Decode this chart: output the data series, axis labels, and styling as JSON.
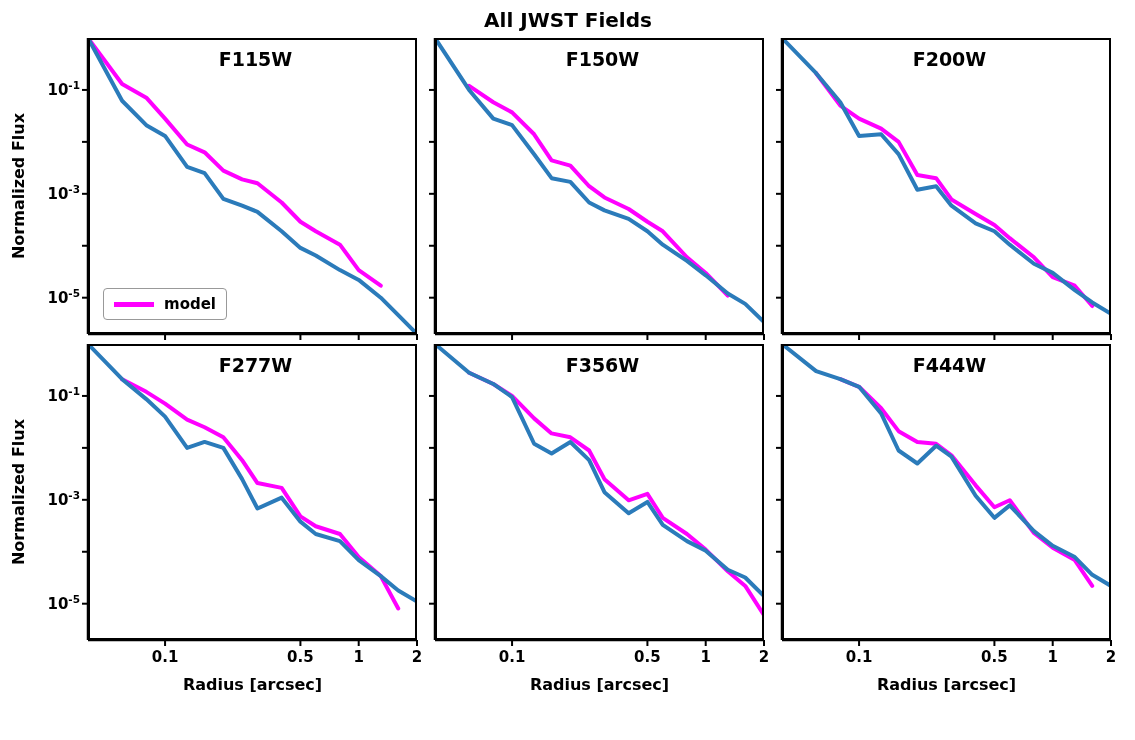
{
  "chart_data": [
    {
      "type": "line",
      "title": "F115W",
      "annotations": [
        "All JWST Fields"
      ],
      "ylabel": "Normalized Flux",
      "log": "xy",
      "xlim": [
        0.04,
        2
      ],
      "xticks": [
        {
          "value": 0.1,
          "label": null
        },
        {
          "value": 0.5,
          "label": null
        },
        {
          "value": 1,
          "label": null
        },
        {
          "value": 2,
          "label": null
        }
      ],
      "ylim": [
        2e-06,
        1
      ],
      "yticks": [
        {
          "value": 1e-05,
          "label": "10$^{-5}$"
        },
        {
          "value": 0.0001,
          "label": null
        },
        {
          "value": 0.001,
          "label": "10$^{-3}$"
        },
        {
          "value": 0.01,
          "label": null
        },
        {
          "value": 0.1,
          "label": "10$^{-1}$"
        }
      ],
      "tick_labels": "y",
      "legend": "bottom left",
      "marker": "none",
      "line_style": "solid",
      "grid": false,
      "x": [
        0.04,
        0.06,
        0.08,
        0.1,
        0.13,
        0.16,
        0.2,
        0.25,
        0.3,
        0.4,
        0.5,
        0.6,
        0.8,
        1,
        1.3,
        1.6,
        2
      ],
      "series": [
        {
          "color": "#2b7bba",
          "values": [
            1,
            0.062,
            0.021,
            0.013,
            0.0033,
            0.0025,
            0.0008,
            0.00059,
            0.00045,
            0.00019,
            9.1e-05,
            6.5e-05,
            3.4e-05,
            2.2e-05,
            1e-05,
            4.6e-06,
            2e-06
          ]
        },
        {
          "name": "model",
          "color": "#ff00ff",
          "values": [
            1,
            0.13,
            0.071,
            0.028,
            0.0089,
            0.0063,
            0.0028,
            0.0019,
            0.0016,
            0.00068,
            0.00029,
            0.00019,
            0.000105,
            3.4e-05,
            1.7e-05,
            null,
            null
          ]
        }
      ]
    },
    {
      "type": "line",
      "title": "F150W",
      "log": "xy",
      "xlim": [
        0.04,
        2
      ],
      "xticks": [
        {
          "value": 0.1,
          "label": null
        },
        {
          "value": 0.5,
          "label": null
        },
        {
          "value": 1,
          "label": null
        },
        {
          "value": 2,
          "label": null
        }
      ],
      "ylim": [
        2e-06,
        1
      ],
      "yticks": [
        {
          "value": 1e-05,
          "label": null
        },
        {
          "value": 0.0001,
          "label": null
        },
        {
          "value": 0.001,
          "label": null
        },
        {
          "value": 0.01,
          "label": null
        },
        {
          "value": 0.1,
          "label": null
        }
      ],
      "tick_labels": false,
      "marker": "none",
      "line_style": "solid",
      "grid": false,
      "x": [
        0.04,
        0.06,
        0.08,
        0.1,
        0.13,
        0.16,
        0.2,
        0.25,
        0.3,
        0.4,
        0.5,
        0.6,
        0.8,
        1,
        1.3,
        1.6,
        2
      ],
      "series": [
        {
          "color": "#2b7bba",
          "values": [
            1,
            0.1,
            0.028,
            0.021,
            0.0058,
            0.002,
            0.0017,
            0.00068,
            0.00048,
            0.00033,
            0.00019,
            0.000105,
            5.1e-05,
            2.7e-05,
            1.2e-05,
            7.6e-06,
            3.4e-06
          ]
        },
        {
          "color": "#ff00ff",
          "values": [
            null,
            0.12,
            0.058,
            0.037,
            0.014,
            0.0044,
            0.0035,
            0.0014,
            0.00085,
            0.00051,
            0.00029,
            0.00019,
            6e-05,
            3e-05,
            1.1e-05,
            null,
            null
          ]
        }
      ]
    },
    {
      "type": "line",
      "title": "F200W",
      "log": "xy",
      "xlim": [
        0.04,
        2
      ],
      "xticks": [
        {
          "value": 0.1,
          "label": null
        },
        {
          "value": 0.5,
          "label": null
        },
        {
          "value": 1,
          "label": null
        },
        {
          "value": 2,
          "label": null
        }
      ],
      "ylim": [
        2e-06,
        1
      ],
      "yticks": [
        {
          "value": 1e-05,
          "label": null
        },
        {
          "value": 0.0001,
          "label": null
        },
        {
          "value": 0.001,
          "label": null
        },
        {
          "value": 0.01,
          "label": null
        },
        {
          "value": 0.1,
          "label": null
        }
      ],
      "tick_labels": false,
      "marker": "none",
      "line_style": "solid",
      "grid": false,
      "x": [
        0.04,
        0.06,
        0.08,
        0.1,
        0.13,
        0.16,
        0.2,
        0.25,
        0.3,
        0.4,
        0.5,
        0.6,
        0.8,
        1,
        1.3,
        1.6,
        2
      ],
      "series": [
        {
          "color": "#2b7bba",
          "values": [
            1,
            0.21,
            0.058,
            0.013,
            0.014,
            0.0058,
            0.0012,
            0.0014,
            0.00059,
            0.00027,
            0.00019,
            0.000105,
            4.5e-05,
            3e-05,
            1.4e-05,
            8.1e-06,
            4.9e-06
          ]
        },
        {
          "color": "#ff00ff",
          "values": [
            null,
            0.21,
            0.05,
            0.028,
            0.018,
            0.01,
            0.0023,
            0.002,
            0.00078,
            0.00041,
            0.00025,
            0.00014,
            6e-05,
            2.5e-05,
            1.7e-05,
            6.9e-06,
            null
          ]
        }
      ]
    },
    {
      "type": "line",
      "title": "F277W",
      "xlabel": "Radius [arcsec]",
      "ylabel": "Normalized Flux",
      "log": "xy",
      "xlim": [
        0.04,
        2
      ],
      "xticks": [
        0.1,
        0.5,
        1,
        2
      ],
      "ylim": [
        2e-06,
        1
      ],
      "yticks": [
        {
          "value": 1e-05,
          "label": "10$^{-5}$"
        },
        {
          "value": 0.0001,
          "label": null
        },
        {
          "value": 0.001,
          "label": "10$^{-3}$"
        },
        {
          "value": 0.01,
          "label": null
        },
        {
          "value": 0.1,
          "label": "10$^{-1}$"
        }
      ],
      "marker": "none",
      "line_style": "solid",
      "grid": false,
      "x": [
        0.04,
        0.06,
        0.08,
        0.1,
        0.13,
        0.16,
        0.2,
        0.25,
        0.3,
        0.4,
        0.5,
        0.6,
        0.8,
        1,
        1.3,
        1.6,
        2
      ],
      "series": [
        {
          "color": "#2b7bba",
          "values": [
            1,
            0.21,
            0.087,
            0.04,
            0.01,
            0.013,
            0.01,
            0.0025,
            0.00068,
            0.0011,
            0.00038,
            0.00022,
            0.00016,
            6.9e-05,
            3.4e-05,
            1.8e-05,
            1.1e-05
          ]
        },
        {
          "color": "#ff00ff",
          "values": [
            null,
            0.21,
            0.12,
            0.071,
            0.035,
            0.025,
            0.016,
            0.0058,
            0.0021,
            0.0017,
            0.00048,
            0.00031,
            0.00022,
            7.9e-05,
            3.4e-05,
            8.1e-06,
            null
          ]
        }
      ]
    },
    {
      "type": "line",
      "title": "F356W",
      "xlabel": "Radius [arcsec]",
      "log": "xy",
      "xlim": [
        0.04,
        2
      ],
      "xticks": [
        0.1,
        0.5,
        1,
        2
      ],
      "ylim": [
        2e-06,
        1
      ],
      "yticks": [
        {
          "value": 1e-05,
          "label": null
        },
        {
          "value": 0.0001,
          "label": null
        },
        {
          "value": 0.001,
          "label": null
        },
        {
          "value": 0.01,
          "label": null
        },
        {
          "value": 0.1,
          "label": null
        }
      ],
      "tick_labels": "x",
      "marker": "none",
      "line_style": "solid",
      "grid": false,
      "x": [
        0.04,
        0.06,
        0.08,
        0.1,
        0.13,
        0.16,
        0.2,
        0.25,
        0.3,
        0.4,
        0.5,
        0.6,
        0.8,
        1,
        1.3,
        1.6,
        2
      ],
      "series": [
        {
          "color": "#2b7bba",
          "values": [
            1,
            0.28,
            0.17,
            0.095,
            0.012,
            0.0078,
            0.013,
            0.0058,
            0.0014,
            0.00055,
            0.00091,
            0.00033,
            0.00016,
            0.000105,
            4.5e-05,
            3.2e-05,
            1.4e-05
          ]
        },
        {
          "color": "#ff00ff",
          "values": [
            null,
            0.28,
            0.17,
            0.1,
            0.037,
            0.019,
            0.016,
            0.0089,
            0.0025,
            0.00098,
            0.0013,
            0.00045,
            0.00022,
            0.00011,
            4.2e-05,
            2.2e-05,
            6e-06
          ]
        }
      ]
    },
    {
      "type": "line",
      "title": "F444W",
      "xlabel": "Radius [arcsec]",
      "log": "xy",
      "xlim": [
        0.04,
        2
      ],
      "xticks": [
        0.1,
        0.5,
        1,
        2
      ],
      "ylim": [
        2e-06,
        1
      ],
      "yticks": [
        {
          "value": 1e-05,
          "label": null
        },
        {
          "value": 0.0001,
          "label": null
        },
        {
          "value": 0.001,
          "label": null
        },
        {
          "value": 0.01,
          "label": null
        },
        {
          "value": 0.1,
          "label": null
        }
      ],
      "tick_labels": "x",
      "marker": "none",
      "line_style": "solid",
      "grid": false,
      "x": [
        0.04,
        0.06,
        0.08,
        0.1,
        0.13,
        0.16,
        0.2,
        0.25,
        0.3,
        0.4,
        0.5,
        0.6,
        0.8,
        1,
        1.3,
        1.6,
        2
      ],
      "series": [
        {
          "color": "#2b7bba",
          "values": [
            1,
            0.3,
            0.21,
            0.15,
            0.046,
            0.0089,
            0.005,
            0.011,
            0.0068,
            0.0012,
            0.00045,
            0.00078,
            0.00025,
            0.00013,
            7.9e-05,
            3.6e-05,
            2.2e-05
          ]
        },
        {
          "color": "#ff00ff",
          "values": [
            null,
            null,
            0.21,
            0.15,
            0.058,
            0.021,
            0.013,
            0.012,
            0.0072,
            0.0019,
            0.00072,
            0.00098,
            0.00023,
            0.00012,
            6.9e-05,
            2.2e-05,
            null
          ]
        }
      ]
    }
  ]
}
